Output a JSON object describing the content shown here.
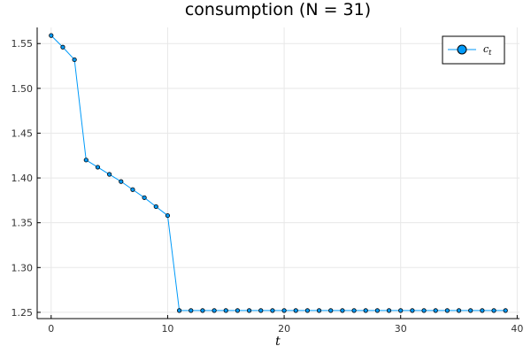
{
  "chart_data": {
    "type": "line",
    "title": "consumption (N = 31)",
    "xlabel": "t",
    "ylabel": "",
    "xlim": [
      -1.2,
      40.2
    ],
    "ylim": [
      1.243,
      1.568
    ],
    "xticks": [
      0,
      10,
      20,
      30,
      40
    ],
    "yticks": [
      1.25,
      1.3,
      1.35,
      1.4,
      1.45,
      1.5,
      1.55
    ],
    "ytick_labels": [
      "1.25",
      "1.30",
      "1.35",
      "1.40",
      "1.45",
      "1.50",
      "1.55"
    ],
    "grid": true,
    "legend_position": "top-right",
    "series": [
      {
        "name": "c_t",
        "legend_main": "c",
        "legend_sub": "t",
        "color": "#009af9",
        "marker": "circle",
        "x": [
          0,
          1,
          2,
          3,
          4,
          5,
          6,
          7,
          8,
          9,
          10,
          11,
          12,
          13,
          14,
          15,
          16,
          17,
          18,
          19,
          20,
          21,
          22,
          23,
          24,
          25,
          26,
          27,
          28,
          29,
          30,
          31,
          32,
          33,
          34,
          35,
          36,
          37,
          38,
          39
        ],
        "y": [
          1.559,
          1.546,
          1.532,
          1.42,
          1.412,
          1.404,
          1.396,
          1.387,
          1.378,
          1.368,
          1.358,
          1.252,
          1.252,
          1.252,
          1.252,
          1.252,
          1.252,
          1.252,
          1.252,
          1.252,
          1.252,
          1.252,
          1.252,
          1.252,
          1.252,
          1.252,
          1.252,
          1.252,
          1.252,
          1.252,
          1.252,
          1.252,
          1.252,
          1.252,
          1.252,
          1.252,
          1.252,
          1.252,
          1.252,
          1.252
        ]
      }
    ]
  }
}
